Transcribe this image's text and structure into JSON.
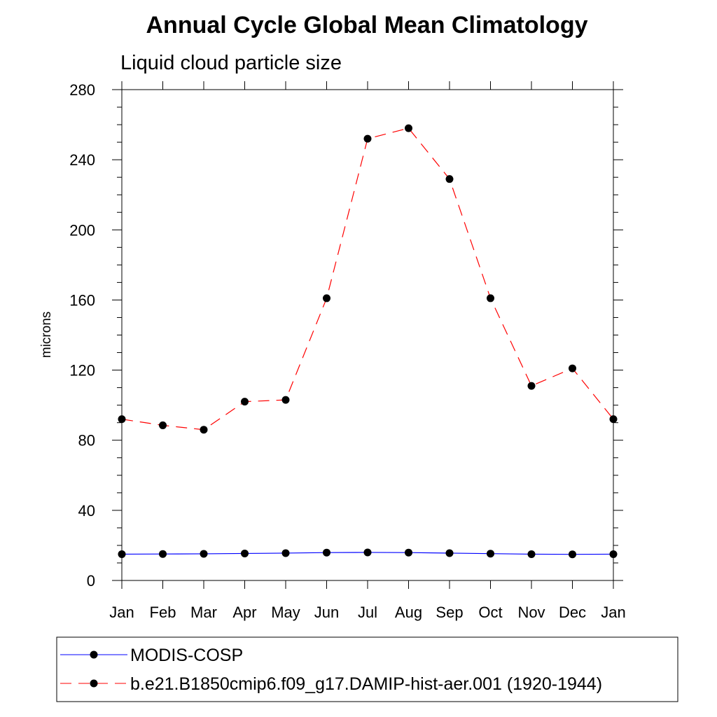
{
  "chart_data": {
    "type": "line",
    "title": "Annual Cycle Global Mean Climatology",
    "subtitle": "Liquid cloud particle size",
    "xlabel": "",
    "ylabel": "microns",
    "categories": [
      "Jan",
      "Feb",
      "Mar",
      "Apr",
      "May",
      "Jun",
      "Jul",
      "Aug",
      "Sep",
      "Oct",
      "Nov",
      "Dec",
      "Jan"
    ],
    "ylim": [
      0,
      280
    ],
    "yticks": [
      0,
      40,
      80,
      120,
      160,
      200,
      240,
      280
    ],
    "grid": false,
    "legend_position": "bottom",
    "series": [
      {
        "name": "MODIS-COSP",
        "color": "#0000ff",
        "line_style": "solid",
        "marker": "filled-circle",
        "values": [
          15.0,
          15.1,
          15.2,
          15.4,
          15.6,
          15.9,
          16.0,
          15.9,
          15.6,
          15.3,
          15.0,
          14.9,
          15.0
        ]
      },
      {
        "name": "b.e21.B1850cmip6.f09_g17.DAMIP-hist-aer.001 (1920-1944)",
        "color": "#ff0000",
        "line_style": "dashed",
        "marker": "filled-circle",
        "values": [
          92,
          88.5,
          86,
          102,
          103,
          161,
          252,
          258,
          229,
          161,
          111,
          121,
          92
        ]
      }
    ]
  }
}
